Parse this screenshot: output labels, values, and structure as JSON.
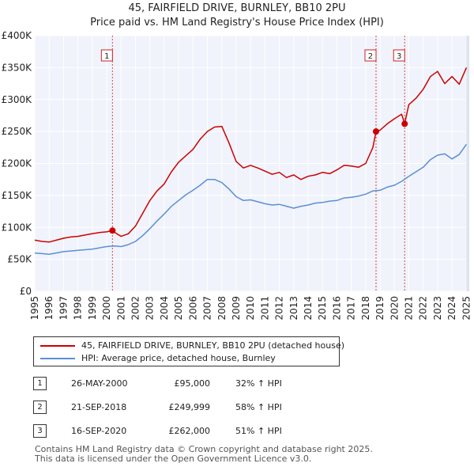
{
  "chart_data": {
    "type": "line",
    "title": "45, FAIRFIELD DRIVE, BURNLEY, BB10 2PU",
    "subtitle": "Price paid vs. HM Land Registry's House Price Index (HPI)",
    "xlabel": "",
    "ylabel": "",
    "xlim": [
      1995,
      2025.2
    ],
    "ylim": [
      0,
      400000
    ],
    "grid": true,
    "x_ticks": [
      "1995",
      "1996",
      "1997",
      "1998",
      "1999",
      "2000",
      "2001",
      "2002",
      "2003",
      "2004",
      "2005",
      "2006",
      "2007",
      "2008",
      "2009",
      "2010",
      "2011",
      "2012",
      "2013",
      "2014",
      "2015",
      "2016",
      "2017",
      "2018",
      "2019",
      "2020",
      "2021",
      "2022",
      "2023",
      "2024",
      "2025"
    ],
    "y_ticks": [
      {
        "value": 0,
        "label": "£0"
      },
      {
        "value": 50000,
        "label": "£50K"
      },
      {
        "value": 100000,
        "label": "£100K"
      },
      {
        "value": 150000,
        "label": "£150K"
      },
      {
        "value": 200000,
        "label": "£200K"
      },
      {
        "value": 250000,
        "label": "£250K"
      },
      {
        "value": 300000,
        "label": "£300K"
      },
      {
        "value": 350000,
        "label": "£350K"
      },
      {
        "value": 400000,
        "label": "£400K"
      }
    ],
    "series": [
      {
        "name": "45, FAIRFIELD DRIVE, BURNLEY, BB10 2PU (detached house)",
        "color": "#cc0000",
        "x": [
          1995.0,
          1995.5,
          1996.0,
          1996.5,
          1997.0,
          1997.5,
          1998.0,
          1998.5,
          1999.0,
          1999.5,
          2000.0,
          2000.4,
          2000.7,
          2001.0,
          2001.5,
          2002.0,
          2002.5,
          2003.0,
          2003.5,
          2004.0,
          2004.5,
          2005.0,
          2005.5,
          2006.0,
          2006.5,
          2007.0,
          2007.5,
          2008.0,
          2008.5,
          2009.0,
          2009.5,
          2010.0,
          2010.5,
          2011.0,
          2011.5,
          2012.0,
          2012.5,
          2013.0,
          2013.5,
          2014.0,
          2014.5,
          2015.0,
          2015.5,
          2016.0,
          2016.5,
          2017.0,
          2017.5,
          2018.0,
          2018.5,
          2018.72,
          2019.0,
          2019.5,
          2020.0,
          2020.5,
          2020.71,
          2021.0,
          2021.5,
          2022.0,
          2022.5,
          2023.0,
          2023.5,
          2024.0,
          2024.5,
          2025.0
        ],
        "values": [
          80000,
          78000,
          77000,
          80000,
          83000,
          85000,
          86000,
          88000,
          90000,
          92000,
          93000,
          95000,
          90000,
          86000,
          90000,
          102000,
          122000,
          142000,
          157000,
          168000,
          187000,
          202000,
          212000,
          222000,
          238000,
          250000,
          257000,
          258000,
          232000,
          203000,
          193000,
          197000,
          193000,
          188000,
          183000,
          186000,
          178000,
          182000,
          175000,
          180000,
          182000,
          186000,
          184000,
          190000,
          197000,
          196000,
          194000,
          200000,
          225000,
          249999,
          252000,
          262000,
          270000,
          277000,
          262000,
          292000,
          302000,
          316000,
          336000,
          344000,
          325000,
          336000,
          324000,
          350000
        ]
      },
      {
        "name": "HPI: Average price, detached house, Burnley",
        "color": "#5b8fd4",
        "x": [
          1995.0,
          1995.5,
          1996.0,
          1996.5,
          1997.0,
          1997.5,
          1998.0,
          1998.5,
          1999.0,
          1999.5,
          2000.0,
          2000.5,
          2001.0,
          2001.5,
          2002.0,
          2002.5,
          2003.0,
          2003.5,
          2004.0,
          2004.5,
          2005.0,
          2005.5,
          2006.0,
          2006.5,
          2007.0,
          2007.5,
          2008.0,
          2008.5,
          2009.0,
          2009.5,
          2010.0,
          2010.5,
          2011.0,
          2011.5,
          2012.0,
          2012.5,
          2013.0,
          2013.5,
          2014.0,
          2014.5,
          2015.0,
          2015.5,
          2016.0,
          2016.5,
          2017.0,
          2017.5,
          2018.0,
          2018.5,
          2019.0,
          2019.5,
          2020.0,
          2020.5,
          2021.0,
          2021.5,
          2022.0,
          2022.5,
          2023.0,
          2023.5,
          2024.0,
          2024.5,
          2025.0
        ],
        "values": [
          60000,
          59000,
          58000,
          60000,
          62000,
          63000,
          64000,
          65000,
          66000,
          68000,
          70000,
          71000,
          70000,
          73000,
          78000,
          87000,
          98000,
          110000,
          121000,
          133000,
          142000,
          151000,
          158000,
          166000,
          175000,
          175000,
          170000,
          160000,
          148000,
          142000,
          143000,
          140000,
          137000,
          135000,
          136000,
          133000,
          130000,
          133000,
          135000,
          138000,
          139000,
          141000,
          142000,
          146000,
          147000,
          149000,
          152000,
          157000,
          158000,
          163000,
          166000,
          172000,
          180000,
          187000,
          194000,
          206000,
          213000,
          215000,
          207000,
          214000,
          230000
        ]
      }
    ],
    "markers": [
      {
        "label": "1",
        "x": 2000.4,
        "y": 95000
      },
      {
        "label": "2",
        "x": 2018.72,
        "y": 249999
      },
      {
        "label": "3",
        "x": 2020.71,
        "y": 262000
      }
    ]
  },
  "legend": {
    "red_label": "45, FAIRFIELD DRIVE, BURNLEY, BB10 2PU (detached house)",
    "blue_label": "HPI: Average price, detached house, Burnley",
    "red_color": "#cc0000",
    "blue_color": "#5b8fd4"
  },
  "transactions": [
    {
      "num": "1",
      "date": "26-MAY-2000",
      "price": "£95,000",
      "hpi": "32% ↑ HPI"
    },
    {
      "num": "2",
      "date": "21-SEP-2018",
      "price": "£249,999",
      "hpi": "58% ↑ HPI"
    },
    {
      "num": "3",
      "date": "16-SEP-2020",
      "price": "£262,000",
      "hpi": "51% ↑ HPI"
    }
  ],
  "footer": {
    "line1": "Contains HM Land Registry data © Crown copyright and database right 2025.",
    "line2": "This data is licensed under the Open Government Licence v3.0."
  }
}
